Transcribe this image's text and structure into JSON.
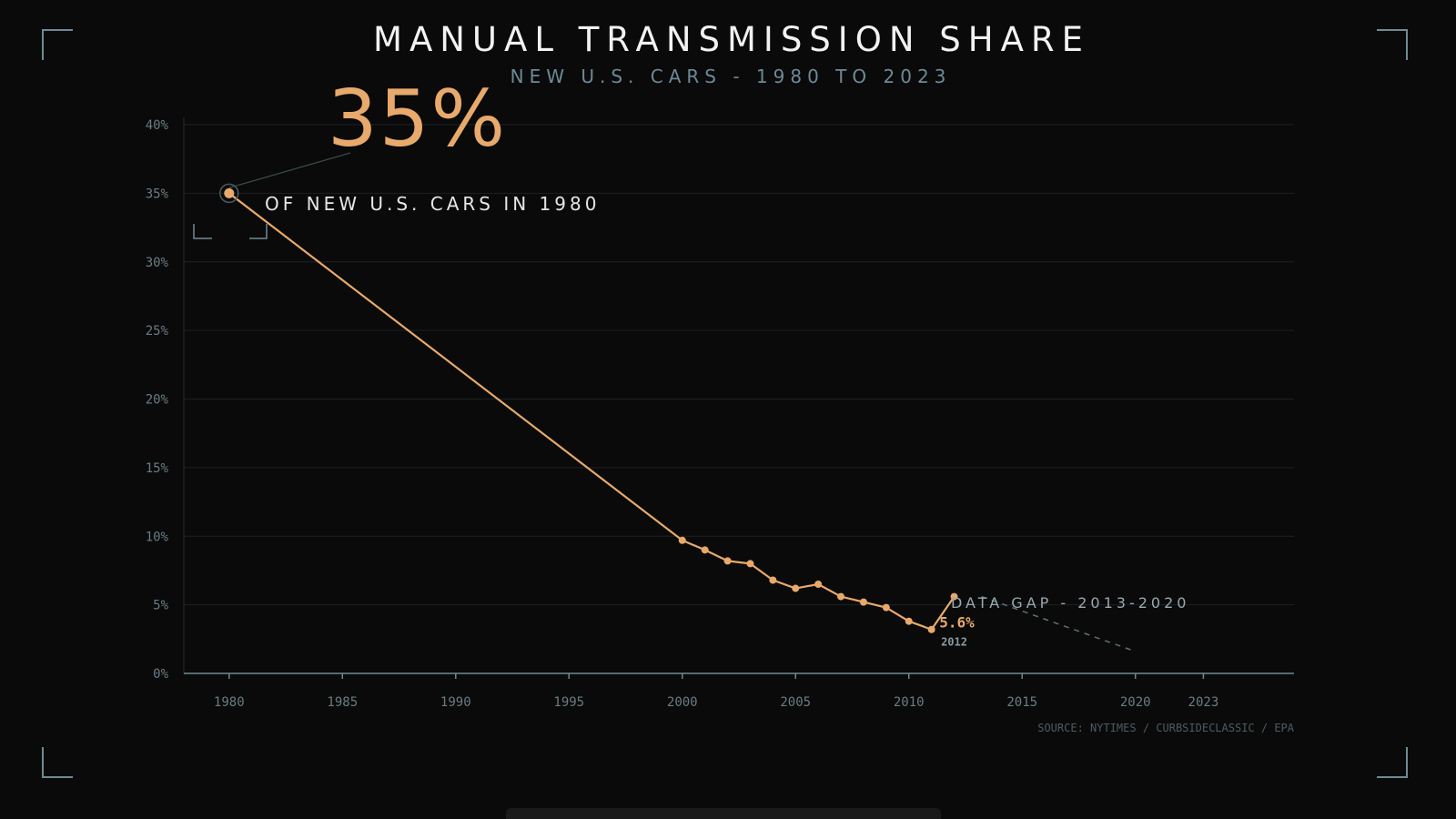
{
  "title": "MANUAL TRANSMISSION SHARE",
  "subtitle": "NEW U.S. CARS - 1980 TO 2023",
  "highlight": {
    "value": "35%",
    "caption": "OF NEW U.S. CARS IN 1980"
  },
  "gap_label": "DATA GAP - 2013-2020",
  "source": "SOURCE: NYTIMES / CURBSIDECLASSIC / EPA",
  "colors": {
    "accent": "#e8a96c",
    "axis": "#6f8a94",
    "grid": "#1d2226",
    "text_muted": "#6a7c84"
  },
  "chart_data": {
    "type": "line",
    "title": "MANUAL TRANSMISSION SHARE",
    "subtitle": "NEW U.S. CARS - 1980 TO 2023",
    "xlabel": "",
    "ylabel": "",
    "xlim": [
      1978,
      2027
    ],
    "ylim": [
      0,
      40
    ],
    "x_ticks": [
      1980,
      1985,
      1990,
      1995,
      2000,
      2005,
      2010,
      2015,
      2020,
      2023
    ],
    "y_ticks": [
      0,
      5,
      10,
      15,
      20,
      25,
      30,
      35,
      40
    ],
    "y_tick_labels": [
      "0%",
      "5%",
      "10%",
      "15%",
      "20%",
      "25%",
      "30%",
      "35%",
      "40%"
    ],
    "grid": true,
    "series": [
      {
        "x": [
          1980,
          2000,
          2001,
          2002,
          2003,
          2004,
          2005,
          2006,
          2007,
          2008,
          2009,
          2010,
          2011,
          2012
        ],
        "values": [
          35,
          9.7,
          9.0,
          8.2,
          8.0,
          6.8,
          6.2,
          6.5,
          5.6,
          5.2,
          4.8,
          3.8,
          3.2,
          5.6
        ]
      }
    ],
    "trend_projection": {
      "x": [
        2012,
        2020
      ],
      "values": [
        5.6,
        1.6
      ]
    },
    "annotations": [
      {
        "x": 2012,
        "y": 5.6,
        "label": "5.6%",
        "sublabel": "2012"
      }
    ]
  }
}
